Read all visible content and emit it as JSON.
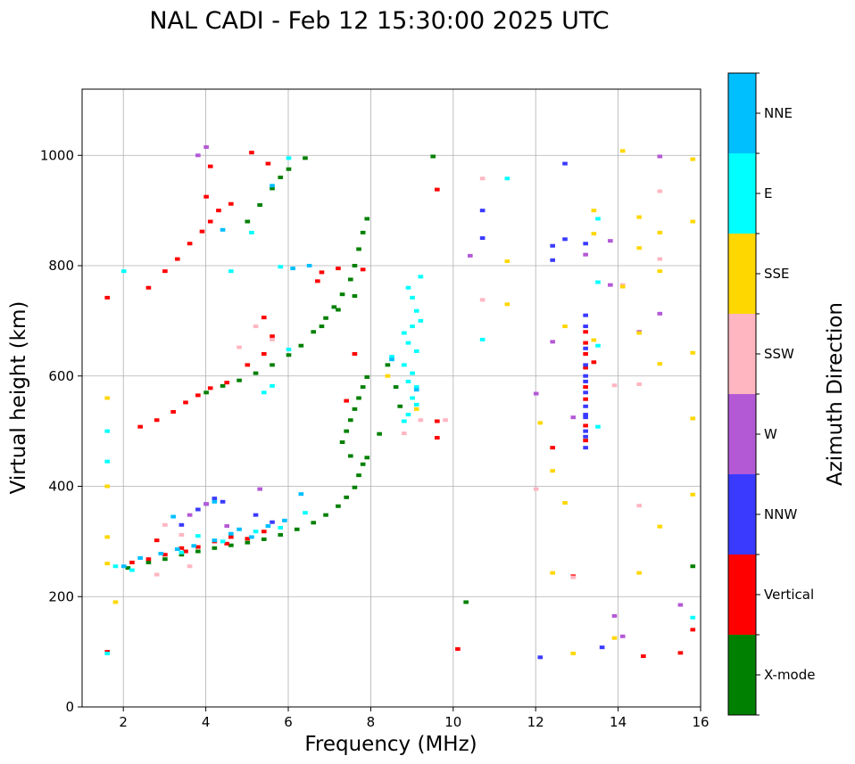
{
  "chart_data": {
    "type": "scatter",
    "title": "NAL CADI - Feb 12 15:30:00 2025 UTC",
    "xlabel": "Frequency (MHz)",
    "ylabel": "Virtual height (km)",
    "xlim": [
      1,
      16
    ],
    "ylim": [
      0,
      1120
    ],
    "xticks": [
      2,
      4,
      6,
      8,
      10,
      12,
      14,
      16
    ],
    "yticks": [
      0,
      200,
      400,
      600,
      800,
      1000
    ],
    "grid": true,
    "colorbar": {
      "label": "Azimuth Direction",
      "categories": [
        "X-mode",
        "Vertical",
        "NNW",
        "W",
        "SSW",
        "SSE",
        "E",
        "NNE"
      ],
      "colors": [
        "#008000",
        "#ff0000",
        "#3a3aff",
        "#b459d6",
        "#ffb6c1",
        "#ffd700",
        "#00ffff",
        "#00bfff"
      ]
    },
    "series": [
      {
        "name": "X-mode",
        "points": [
          [
            2.1,
            252
          ],
          [
            2.6,
            262
          ],
          [
            3.0,
            268
          ],
          [
            3.4,
            276
          ],
          [
            3.8,
            282
          ],
          [
            4.2,
            288
          ],
          [
            4.6,
            293
          ],
          [
            5.0,
            298
          ],
          [
            5.4,
            304
          ],
          [
            5.8,
            312
          ],
          [
            6.2,
            322
          ],
          [
            6.6,
            334
          ],
          [
            6.9,
            348
          ],
          [
            7.2,
            364
          ],
          [
            7.4,
            380
          ],
          [
            7.6,
            398
          ],
          [
            7.7,
            420
          ],
          [
            7.8,
            440
          ],
          [
            7.9,
            452
          ],
          [
            7.5,
            455
          ],
          [
            7.3,
            480
          ],
          [
            7.4,
            500
          ],
          [
            7.5,
            520
          ],
          [
            7.6,
            540
          ],
          [
            7.7,
            560
          ],
          [
            7.8,
            580
          ],
          [
            7.9,
            598
          ],
          [
            4.0,
            570
          ],
          [
            4.4,
            582
          ],
          [
            4.8,
            592
          ],
          [
            5.2,
            605
          ],
          [
            5.6,
            620
          ],
          [
            6.0,
            638
          ],
          [
            6.3,
            655
          ],
          [
            6.6,
            680
          ],
          [
            6.9,
            705
          ],
          [
            7.1,
            725
          ],
          [
            7.3,
            748
          ],
          [
            7.5,
            775
          ],
          [
            7.6,
            800
          ],
          [
            7.7,
            830
          ],
          [
            7.8,
            860
          ],
          [
            7.9,
            885
          ],
          [
            5.0,
            880
          ],
          [
            5.3,
            910
          ],
          [
            5.6,
            940
          ],
          [
            5.8,
            960
          ],
          [
            6.0,
            975
          ],
          [
            6.4,
            995
          ],
          [
            7.6,
            745
          ],
          [
            7.2,
            720
          ],
          [
            6.8,
            690
          ],
          [
            8.4,
            620
          ],
          [
            8.6,
            580
          ],
          [
            8.7,
            545
          ],
          [
            8.2,
            495
          ],
          [
            9.5,
            998
          ],
          [
            10.3,
            190
          ],
          [
            15.8,
            255
          ]
        ]
      },
      {
        "name": "Vertical",
        "points": [
          [
            2.2,
            262
          ],
          [
            2.6,
            268
          ],
          [
            3.0,
            276
          ],
          [
            3.5,
            282
          ],
          [
            3.8,
            290
          ],
          [
            4.2,
            300
          ],
          [
            4.6,
            308
          ],
          [
            5.0,
            305
          ],
          [
            5.4,
            318
          ],
          [
            4.5,
            296
          ],
          [
            2.8,
            302
          ],
          [
            3.4,
            288
          ],
          [
            2.4,
            508
          ],
          [
            2.8,
            520
          ],
          [
            3.2,
            535
          ],
          [
            3.5,
            552
          ],
          [
            3.8,
            565
          ],
          [
            4.1,
            578
          ],
          [
            4.5,
            588
          ],
          [
            5.0,
            620
          ],
          [
            5.4,
            640
          ],
          [
            5.6,
            672
          ],
          [
            5.4,
            706
          ],
          [
            6.7,
            772
          ],
          [
            6.8,
            788
          ],
          [
            7.2,
            795
          ],
          [
            2.6,
            760
          ],
          [
            3.0,
            790
          ],
          [
            3.3,
            812
          ],
          [
            3.6,
            840
          ],
          [
            3.9,
            862
          ],
          [
            4.1,
            880
          ],
          [
            4.3,
            900
          ],
          [
            4.6,
            912
          ],
          [
            4.0,
            925
          ],
          [
            4.1,
            980
          ],
          [
            5.1,
            1005
          ],
          [
            5.5,
            985
          ],
          [
            7.8,
            793
          ],
          [
            7.6,
            640
          ],
          [
            7.4,
            555
          ],
          [
            1.6,
            742
          ],
          [
            1.6,
            100
          ],
          [
            9.6,
            938
          ],
          [
            9.6,
            518
          ],
          [
            9.6,
            488
          ],
          [
            10.1,
            105
          ],
          [
            12.4,
            470
          ],
          [
            12.9,
            237
          ],
          [
            13.4,
            625
          ],
          [
            14.6,
            92
          ],
          [
            15.5,
            98
          ],
          [
            15.8,
            140
          ],
          [
            13.2,
            660
          ],
          [
            13.2,
            615
          ],
          [
            13.2,
            558
          ],
          [
            13.2,
            510
          ],
          [
            13.2,
            483
          ],
          [
            13.2,
            580
          ],
          [
            13.2,
            640
          ],
          [
            13.2,
            680
          ]
        ]
      },
      {
        "name": "NNW",
        "points": [
          [
            4.2,
            378
          ],
          [
            4.4,
            372
          ],
          [
            3.8,
            358
          ],
          [
            5.2,
            348
          ],
          [
            5.6,
            335
          ],
          [
            3.4,
            330
          ],
          [
            4.0,
            368
          ],
          [
            12.7,
            985
          ],
          [
            12.4,
            836
          ],
          [
            12.4,
            810
          ],
          [
            12.7,
            848
          ],
          [
            13.2,
            840
          ],
          [
            13.6,
            108
          ],
          [
            12.1,
            90
          ],
          [
            13.2,
            710
          ],
          [
            13.2,
            690
          ],
          [
            13.2,
            650
          ],
          [
            13.2,
            620
          ],
          [
            13.2,
            600
          ],
          [
            13.2,
            590
          ],
          [
            13.2,
            570
          ],
          [
            13.2,
            545
          ],
          [
            13.2,
            525
          ],
          [
            13.2,
            490
          ],
          [
            13.2,
            470
          ],
          [
            13.2,
            530
          ],
          [
            13.2,
            500
          ],
          [
            10.7,
            900
          ],
          [
            10.7,
            850
          ]
        ]
      },
      {
        "name": "W",
        "points": [
          [
            4.0,
            1015
          ],
          [
            3.8,
            1000
          ],
          [
            4.0,
            368
          ],
          [
            4.5,
            328
          ],
          [
            3.6,
            348
          ],
          [
            5.3,
            395
          ],
          [
            12.0,
            568
          ],
          [
            12.4,
            662
          ],
          [
            12.9,
            525
          ],
          [
            13.2,
            820
          ],
          [
            13.8,
            845
          ],
          [
            13.8,
            765
          ],
          [
            14.1,
            762
          ],
          [
            14.1,
            128
          ],
          [
            13.9,
            165
          ],
          [
            14.5,
            680
          ],
          [
            15.0,
            713
          ],
          [
            15.0,
            998
          ],
          [
            15.5,
            185
          ],
          [
            10.4,
            818
          ]
        ]
      },
      {
        "name": "SSW",
        "points": [
          [
            3.0,
            330
          ],
          [
            3.4,
            312
          ],
          [
            5.6,
            666
          ],
          [
            5.2,
            690
          ],
          [
            4.8,
            652
          ],
          [
            10.7,
            958
          ],
          [
            10.7,
            738
          ],
          [
            9.8,
            520
          ],
          [
            9.2,
            520
          ],
          [
            8.8,
            496
          ],
          [
            12.0,
            395
          ],
          [
            12.9,
            235
          ],
          [
            13.9,
            583
          ],
          [
            14.5,
            585
          ],
          [
            14.5,
            365
          ],
          [
            15.0,
            935
          ],
          [
            15.0,
            812
          ],
          [
            14.1,
            765
          ],
          [
            2.8,
            240
          ],
          [
            3.6,
            255
          ]
        ]
      },
      {
        "name": "SSE",
        "points": [
          [
            1.6,
            308
          ],
          [
            1.6,
            260
          ],
          [
            1.8,
            190
          ],
          [
            1.6,
            400
          ],
          [
            1.6,
            560
          ],
          [
            11.3,
            808
          ],
          [
            11.3,
            730
          ],
          [
            12.1,
            515
          ],
          [
            12.4,
            428
          ],
          [
            12.4,
            243
          ],
          [
            12.7,
            370
          ],
          [
            12.9,
            97
          ],
          [
            12.7,
            690
          ],
          [
            13.4,
            900
          ],
          [
            13.4,
            858
          ],
          [
            13.4,
            665
          ],
          [
            13.9,
            125
          ],
          [
            14.1,
            1008
          ],
          [
            14.1,
            762
          ],
          [
            14.5,
            888
          ],
          [
            14.5,
            832
          ],
          [
            14.5,
            678
          ],
          [
            14.5,
            243
          ],
          [
            15.0,
            860
          ],
          [
            15.0,
            790
          ],
          [
            15.0,
            622
          ],
          [
            15.0,
            327
          ],
          [
            15.8,
            993
          ],
          [
            15.8,
            880
          ],
          [
            15.8,
            642
          ],
          [
            15.8,
            523
          ],
          [
            15.8,
            385
          ],
          [
            9.1,
            540
          ],
          [
            8.4,
            600
          ]
        ]
      },
      {
        "name": "E",
        "points": [
          [
            1.6,
            97
          ],
          [
            1.6,
            445
          ],
          [
            1.6,
            500
          ],
          [
            1.8,
            255
          ],
          [
            2.2,
            248
          ],
          [
            3.4,
            280
          ],
          [
            4.4,
            300
          ],
          [
            5.2,
            318
          ],
          [
            5.8,
            325
          ],
          [
            6.4,
            352
          ],
          [
            5.4,
            570
          ],
          [
            5.6,
            582
          ],
          [
            6.0,
            648
          ],
          [
            4.6,
            790
          ],
          [
            5.1,
            860
          ],
          [
            5.8,
            798
          ],
          [
            6.0,
            995
          ],
          [
            11.3,
            958
          ],
          [
            10.7,
            666
          ],
          [
            13.5,
            885
          ],
          [
            13.5,
            770
          ],
          [
            13.5,
            655
          ],
          [
            13.5,
            508
          ],
          [
            15.8,
            162
          ],
          [
            8.9,
            760
          ],
          [
            9.0,
            742
          ],
          [
            9.1,
            718
          ],
          [
            9.2,
            700
          ],
          [
            9.0,
            690
          ],
          [
            8.8,
            678
          ],
          [
            8.9,
            660
          ],
          [
            9.1,
            645
          ],
          [
            8.5,
            635
          ],
          [
            8.8,
            620
          ],
          [
            9.0,
            605
          ],
          [
            8.9,
            590
          ],
          [
            9.1,
            580
          ],
          [
            9.0,
            560
          ],
          [
            9.1,
            548
          ],
          [
            8.9,
            530
          ],
          [
            8.8,
            518
          ],
          [
            9.2,
            780
          ],
          [
            2.0,
            790
          ],
          [
            3.8,
            310
          ]
        ]
      },
      {
        "name": "NNE",
        "points": [
          [
            2.0,
            255
          ],
          [
            2.4,
            270
          ],
          [
            2.9,
            278
          ],
          [
            3.3,
            286
          ],
          [
            3.7,
            292
          ],
          [
            4.2,
            302
          ],
          [
            4.6,
            314
          ],
          [
            5.1,
            308
          ],
          [
            5.5,
            328
          ],
          [
            5.9,
            338
          ],
          [
            6.3,
            386
          ],
          [
            4.2,
            372
          ],
          [
            3.2,
            345
          ],
          [
            4.8,
            322
          ],
          [
            6.5,
            800
          ],
          [
            6.1,
            795
          ],
          [
            4.4,
            865
          ],
          [
            5.6,
            945
          ],
          [
            9.1,
            575
          ],
          [
            8.5,
            630
          ]
        ]
      }
    ]
  }
}
